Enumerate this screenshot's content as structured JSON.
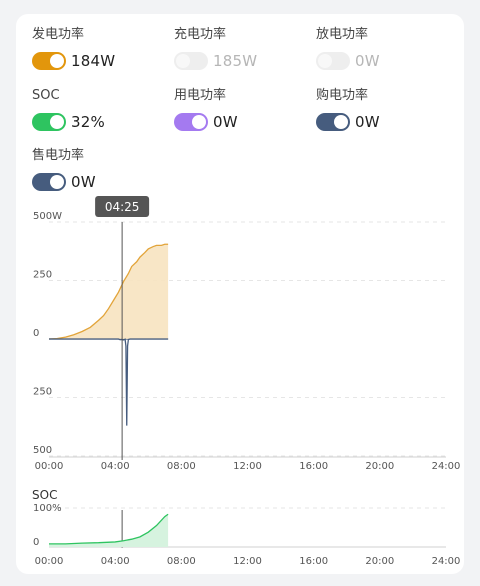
{
  "metrics": [
    {
      "label": "发电功率",
      "value": "184W",
      "color": "#e2960c",
      "on": true
    },
    {
      "label": "充电功率",
      "value": "185W",
      "color": "#e6e6e6",
      "on": false
    },
    {
      "label": "放电功率",
      "value": "0W",
      "color": "#e6e6e6",
      "on": false
    },
    {
      "label": "SOC",
      "value": "32%",
      "color": "#2ec460",
      "on": true
    },
    {
      "label": "用电功率",
      "value": "0W",
      "color": "#a47af0",
      "on": true
    },
    {
      "label": "购电功率",
      "value": "0W",
      "color": "#465c7e",
      "on": true
    },
    {
      "label": "售电功率",
      "value": "0W",
      "color": "#465c7e",
      "on": true
    }
  ],
  "tooltip": {
    "time": "04:25"
  },
  "chart_data": [
    {
      "type": "area",
      "x_ticks": [
        "00:00",
        "04:00",
        "08:00",
        "12:00",
        "16:00",
        "20:00",
        "24:00"
      ],
      "y_ticks": [
        "500W",
        "250",
        "0",
        "250",
        "500"
      ],
      "ylim": [
        -500,
        500
      ],
      "xlim": [
        0,
        24
      ],
      "grid": true,
      "series": [
        {
          "color": "#e2a43a",
          "x": [
            0,
            0.5,
            1.0,
            1.5,
            2.0,
            2.5,
            3.0,
            3.3,
            3.6,
            3.9,
            4.2,
            4.5,
            4.8,
            5.0,
            5.3,
            5.5,
            5.8,
            6.0,
            6.3,
            6.5,
            6.8,
            7.0,
            7.2
          ],
          "y": [
            0,
            2,
            8,
            18,
            32,
            50,
            80,
            100,
            130,
            165,
            200,
            245,
            280,
            310,
            330,
            350,
            370,
            385,
            395,
            400,
            400,
            405,
            405
          ]
        },
        {
          "color": "#465c7e",
          "x": [
            0,
            4.2,
            4.3,
            4.4,
            4.5,
            4.6,
            4.65,
            4.7,
            4.75,
            4.8,
            4.9,
            5.0,
            7.2
          ],
          "y": [
            0,
            0,
            -3,
            -2,
            -4,
            -1,
            -30,
            -370,
            -30,
            -2,
            0,
            0,
            0
          ]
        }
      ]
    },
    {
      "type": "area",
      "title": "SOC",
      "x_ticks": [
        "00:00",
        "04:00",
        "08:00",
        "12:00",
        "16:00",
        "20:00",
        "24:00"
      ],
      "y_ticks": [
        "100%",
        "0"
      ],
      "ylim": [
        0,
        100
      ],
      "xlim": [
        0,
        24
      ],
      "series": [
        {
          "color": "#2ec460",
          "x": [
            0,
            1,
            2,
            3,
            4,
            4.5,
            5,
            5.5,
            6,
            6.5,
            7,
            7.2
          ],
          "y": [
            8,
            8,
            10,
            11,
            13,
            16,
            20,
            26,
            38,
            55,
            78,
            84
          ]
        }
      ]
    }
  ]
}
